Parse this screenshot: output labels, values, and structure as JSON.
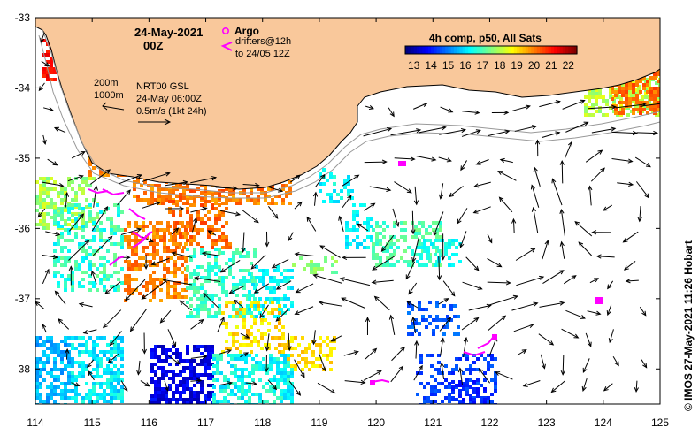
{
  "map": {
    "date_line1": "24-May-2021",
    "date_line2": "00Z",
    "argo_label": "Argo",
    "drifters_line1": "drifters@12h",
    "drifters_line2": "to 24/05 12Z",
    "depth_200": "200m",
    "depth_1000": "1000m",
    "product_line1": "NRT00 GSL",
    "product_line2": "24-May 06:00Z",
    "scale_label": "0.5m/s (1kt 24h)",
    "credit": "© IMOS 27-May-2021 11:26 Hobart",
    "land_color": "#f9c89b",
    "argo_color": "#ff00ff",
    "drifter_color": "#ff00ff"
  },
  "colorbar": {
    "title": "4h comp, p50, All Sats",
    "ticks": [
      "13",
      "14",
      "15",
      "16",
      "17",
      "18",
      "19",
      "20",
      "21",
      "22"
    ],
    "min": 12.5,
    "max": 22.5
  },
  "axes": {
    "x_ticks": [
      "114",
      "115",
      "116",
      "117",
      "118",
      "119",
      "120",
      "121",
      "122",
      "123",
      "124",
      "125"
    ],
    "y_ticks": [
      "-33",
      "-34",
      "-35",
      "-36",
      "-37",
      "-38"
    ],
    "lon_range": [
      114,
      125
    ],
    "lat_range": [
      -38.5,
      -33
    ]
  },
  "chart_data": {
    "type": "map",
    "lon_range": [
      114,
      125
    ],
    "lat_range": [
      -38.5,
      -33
    ],
    "colorbar_units_range": [
      13,
      22
    ]
  }
}
